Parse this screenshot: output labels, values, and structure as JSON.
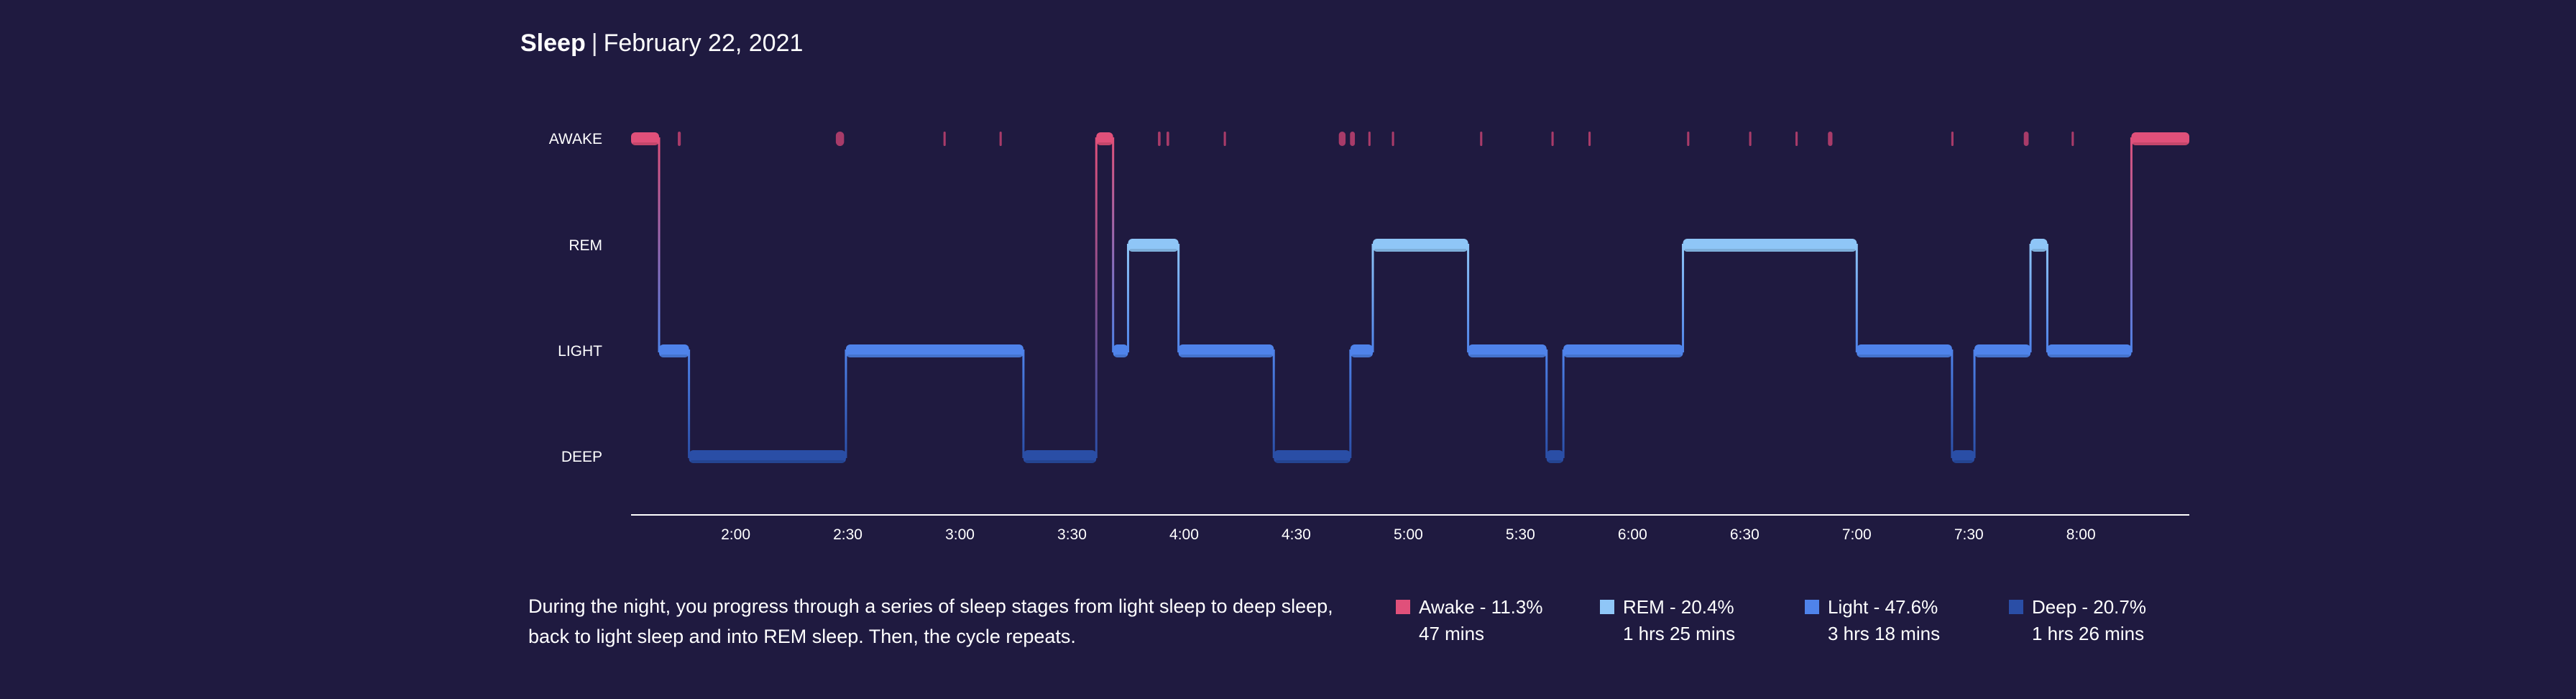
{
  "header": {
    "title": "Sleep",
    "separator": "|",
    "date": "February 22, 2021"
  },
  "description": "During the night, you progress through a series of sleep stages from light sleep to deep sleep, back to light sleep and into REM sleep. Then, the cycle repeats.",
  "legend": [
    {
      "stage": "awake",
      "label": "Awake - 11.3%",
      "duration": "47 mins",
      "color": "#e0507a"
    },
    {
      "stage": "rem",
      "label": "REM - 20.4%",
      "duration": "1 hrs 25 mins",
      "color": "#8fc6f7"
    },
    {
      "stage": "light",
      "label": "Light - 47.6%",
      "duration": "3 hrs 18 mins",
      "color": "#4f83ea"
    },
    {
      "stage": "deep",
      "label": "Deep - 20.7%",
      "duration": "1 hrs 26 mins",
      "color": "#2a4ea6"
    }
  ],
  "chart_data": {
    "type": "step-timeline",
    "y_stages": [
      "AWAKE",
      "REM",
      "LIGHT",
      "DEEP"
    ],
    "x_tick_labels": [
      "2:00",
      "2:30",
      "3:00",
      "3:30",
      "4:00",
      "4:30",
      "5:00",
      "5:30",
      "6:00",
      "6:30",
      "7:00",
      "7:30",
      "8:00"
    ],
    "x_ticks_minutes": [
      120,
      150,
      180,
      210,
      240,
      270,
      300,
      330,
      360,
      390,
      420,
      450,
      480
    ],
    "x_range_minutes": [
      92,
      509
    ],
    "colors": {
      "AWAKE": "#e0507a",
      "REM": "#8fc6f7",
      "LIGHT": "#4f83ea",
      "DEEP": "#2a4ea6",
      "brief_awake": "#b03d6c"
    },
    "segments": [
      {
        "stage": "AWAKE",
        "start": 92.0,
        "end": 99.5
      },
      {
        "stage": "LIGHT",
        "start": 99.5,
        "end": 107.5
      },
      {
        "stage": "DEEP",
        "start": 107.5,
        "end": 149.5
      },
      {
        "stage": "LIGHT",
        "start": 149.5,
        "end": 197.0
      },
      {
        "stage": "DEEP",
        "start": 197.0,
        "end": 216.5
      },
      {
        "stage": "AWAKE",
        "start": 216.5,
        "end": 221.0
      },
      {
        "stage": "LIGHT",
        "start": 221.0,
        "end": 225.0
      },
      {
        "stage": "REM",
        "start": 225.0,
        "end": 238.5
      },
      {
        "stage": "LIGHT",
        "start": 238.5,
        "end": 264.0
      },
      {
        "stage": "DEEP",
        "start": 264.0,
        "end": 284.5
      },
      {
        "stage": "LIGHT",
        "start": 284.5,
        "end": 290.5
      },
      {
        "stage": "REM",
        "start": 290.5,
        "end": 316.0
      },
      {
        "stage": "LIGHT",
        "start": 316.0,
        "end": 337.0
      },
      {
        "stage": "DEEP",
        "start": 337.0,
        "end": 341.5
      },
      {
        "stage": "LIGHT",
        "start": 341.5,
        "end": 373.5
      },
      {
        "stage": "REM",
        "start": 373.5,
        "end": 420.0
      },
      {
        "stage": "LIGHT",
        "start": 420.0,
        "end": 445.5
      },
      {
        "stage": "DEEP",
        "start": 445.5,
        "end": 451.5
      },
      {
        "stage": "LIGHT",
        "start": 451.5,
        "end": 466.5
      },
      {
        "stage": "REM",
        "start": 466.5,
        "end": 471.0
      },
      {
        "stage": "LIGHT",
        "start": 471.0,
        "end": 493.5
      },
      {
        "stage": "AWAKE",
        "start": 493.5,
        "end": 509.0
      }
    ],
    "brief_awakenings": [
      {
        "start": 104.5,
        "end": 105.3
      },
      {
        "start": 146.8,
        "end": 149.0
      },
      {
        "start": 175.6,
        "end": 176.2
      },
      {
        "start": 190.6,
        "end": 191.2
      },
      {
        "start": 233.0,
        "end": 233.7
      },
      {
        "start": 235.3,
        "end": 236.0
      },
      {
        "start": 250.6,
        "end": 251.2
      },
      {
        "start": 281.4,
        "end": 283.2
      },
      {
        "start": 284.4,
        "end": 285.7
      },
      {
        "start": 289.3,
        "end": 289.9
      },
      {
        "start": 295.6,
        "end": 296.2
      },
      {
        "start": 319.2,
        "end": 319.8
      },
      {
        "start": 338.3,
        "end": 338.9
      },
      {
        "start": 348.2,
        "end": 348.8
      },
      {
        "start": 374.6,
        "end": 375.2
      },
      {
        "start": 391.2,
        "end": 391.8
      },
      {
        "start": 403.6,
        "end": 404.2
      },
      {
        "start": 412.3,
        "end": 413.5
      },
      {
        "start": 445.3,
        "end": 445.9
      },
      {
        "start": 464.7,
        "end": 466.0
      },
      {
        "start": 477.5,
        "end": 478.1
      }
    ]
  }
}
